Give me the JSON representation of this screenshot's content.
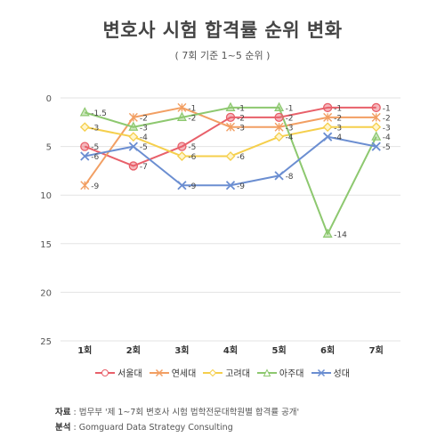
{
  "title": "변호사 시험 합격률 순위 변화",
  "subtitle": "( 7회 기준 1~5 순위 )",
  "colors": {
    "서울대": "#e8606a",
    "연세대": "#f29f63",
    "고려대": "#f5cf4c",
    "아주대": "#8dc86f",
    "성대": "#6b8ed1"
  },
  "chart_data": {
    "type": "line",
    "x": [
      "1회",
      "2회",
      "3회",
      "4회",
      "5회",
      "6회",
      "7회"
    ],
    "ylim": [
      0,
      25
    ],
    "yticks": [
      0,
      5,
      10,
      15,
      20,
      25
    ],
    "y_inverted": true,
    "grid": true,
    "legend_position": "bottom",
    "series": [
      {
        "name": "서울대",
        "marker": "circle",
        "values": [
          5,
          7,
          5,
          2,
          2,
          1,
          1
        ],
        "labels": [
          "-5",
          "-7",
          "-5",
          "-2",
          "-2",
          "-1",
          "-1"
        ]
      },
      {
        "name": "연세대",
        "marker": "asterisk",
        "values": [
          9,
          2,
          1,
          3,
          3,
          2,
          2
        ],
        "labels": [
          "-9",
          "-2",
          "-1",
          "-3",
          "-3",
          "-2",
          "-2"
        ]
      },
      {
        "name": "고려대",
        "marker": "diamond",
        "values": [
          3,
          4,
          6,
          6,
          4,
          3,
          3
        ],
        "labels": [
          "-3",
          "-4",
          "-6",
          "-6",
          "-4",
          "-3",
          "-3"
        ]
      },
      {
        "name": "아주대",
        "marker": "triangle",
        "values": [
          1.5,
          3,
          2,
          1,
          1,
          14,
          4
        ],
        "labels": [
          "-1.5",
          "-3",
          "-2",
          "-1",
          "-1",
          "-14",
          "-4"
        ]
      },
      {
        "name": "성대",
        "marker": "cross",
        "values": [
          6,
          5,
          9,
          9,
          8,
          4,
          5
        ],
        "labels": [
          "-6",
          "-5",
          "-9",
          "-9",
          "-8",
          "-4",
          "-5"
        ]
      }
    ]
  },
  "source": {
    "data_label": "자료",
    "data_text": " : 법무부 '제 1~7회 변호사 시험 법학전문대학원별 합격률 공개'",
    "analysis_label": "분석",
    "analysis_text": " : Gomguard Data Strategy Consulting"
  }
}
